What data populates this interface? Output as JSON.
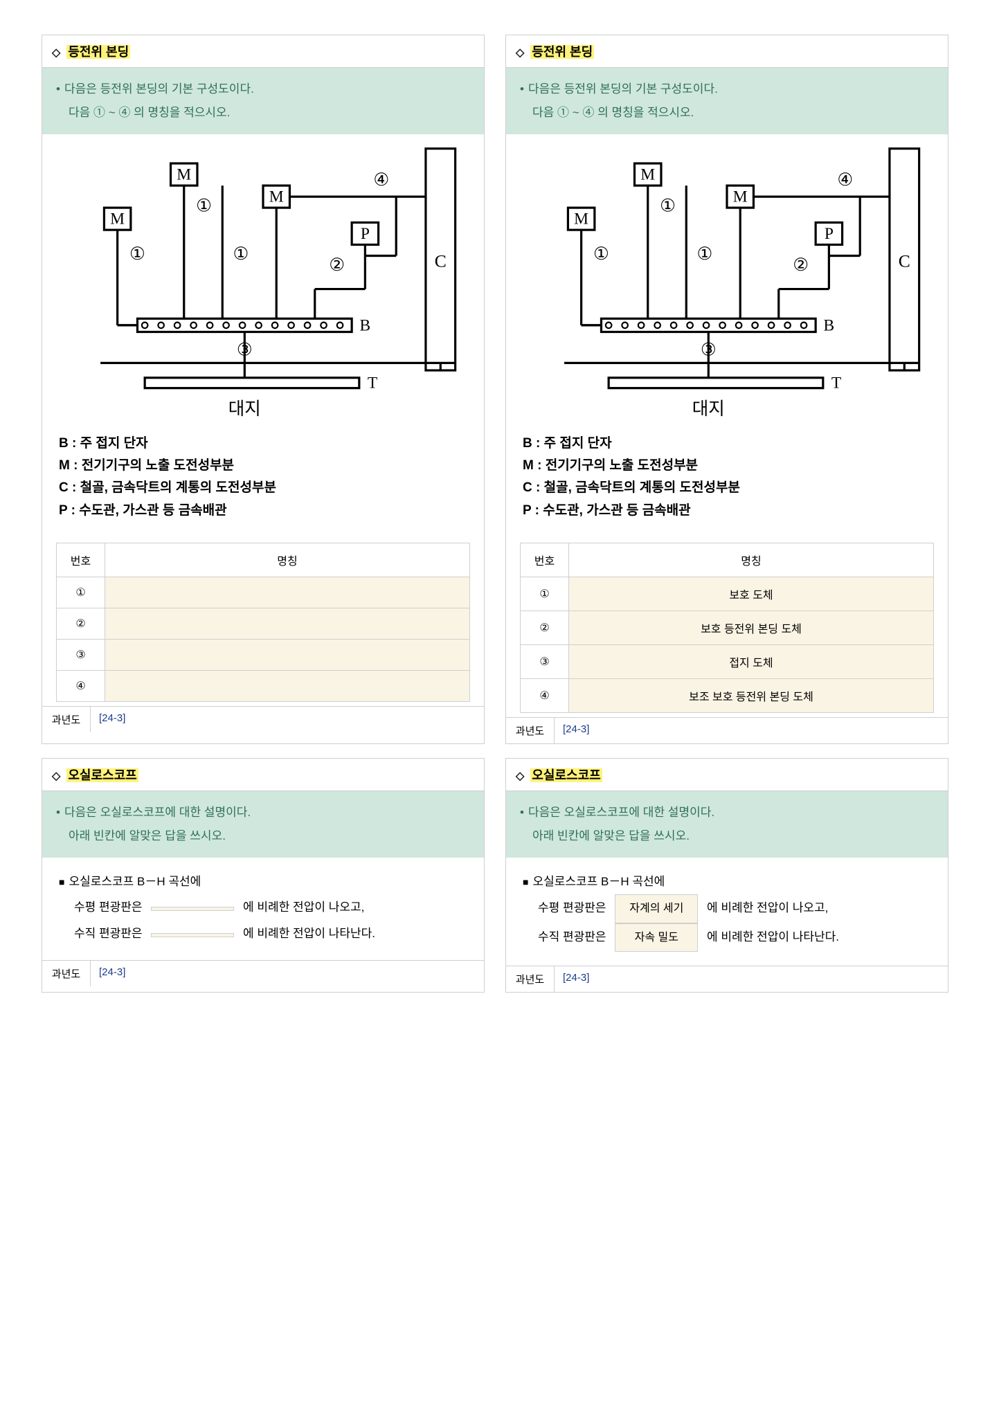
{
  "card1": {
    "title": "등전위 본딩",
    "q_line1": "다음은 등전위 본딩의 기본 구성도이다.",
    "q_line2": "다음 ① ~ ④ 의 명칭을 적으시오.",
    "legend": {
      "B": "B : 주 접지 단자",
      "M": "M : 전기기구의 노출 도전성부분",
      "C": "C : 철골, 금속닥트의 계통의 도전성부분",
      "P": "P : 수도관, 가스관 등 금속배관"
    },
    "table": {
      "h1": "번호",
      "h2": "명칭",
      "rows": [
        {
          "no": "①",
          "val": ""
        },
        {
          "no": "②",
          "val": ""
        },
        {
          "no": "③",
          "val": ""
        },
        {
          "no": "④",
          "val": ""
        }
      ]
    },
    "footer_label": "과년도",
    "footer_val": "[24-3]"
  },
  "card2": {
    "title": "등전위 본딩",
    "q_line1": "다음은 등전위 본딩의 기본 구성도이다.",
    "q_line2": "다음 ① ~ ④ 의 명칭을 적으시오.",
    "legend": {
      "B": "B : 주 접지 단자",
      "M": "M : 전기기구의 노출 도전성부분",
      "C": "C : 철골, 금속닥트의 계통의 도전성부분",
      "P": "P : 수도관, 가스관 등 금속배관"
    },
    "table": {
      "h1": "번호",
      "h2": "명칭",
      "rows": [
        {
          "no": "①",
          "val": "보호 도체"
        },
        {
          "no": "②",
          "val": "보호 등전위 본딩 도체"
        },
        {
          "no": "③",
          "val": "접지 도체"
        },
        {
          "no": "④",
          "val": "보조 보호 등전위 본딩 도체"
        }
      ]
    },
    "footer_label": "과년도",
    "footer_val": "[24-3]"
  },
  "card3": {
    "title": "오실로스코프",
    "q_line1": "다음은 오실로스코프에 대한 설명이다.",
    "q_line2": "아래 빈칸에 알맞은 답을 쓰시오.",
    "sub": "오실로스코프 B－H 곡선에",
    "line1a": "수평 편광판은",
    "blank1": "",
    "line1b": "에 비례한 전압이 나오고,",
    "line2a": "수직 편광판은",
    "blank2": "",
    "line2b": "에 비례한 전압이 나타난다.",
    "footer_label": "과년도",
    "footer_val": "[24-3]"
  },
  "card4": {
    "title": "오실로스코프",
    "q_line1": "다음은 오실로스코프에 대한 설명이다.",
    "q_line2": "아래 빈칸에 알맞은 답을 쓰시오.",
    "sub": "오실로스코프 B－H 곡선에",
    "line1a": "수평 편광판은",
    "blank1": "자계의 세기",
    "line1b": "에 비례한 전압이 나오고,",
    "line2a": "수직 편광판은",
    "blank2": "자속 밀도",
    "line2b": "에 비례한 전압이 나타난다.",
    "footer_label": "과년도",
    "footer_val": "[24-3]"
  },
  "diagram": {
    "labels": {
      "M": "M",
      "P": "P",
      "C": "C",
      "B": "B",
      "T": "T",
      "ground": "대지",
      "c1": "①",
      "c2": "②",
      "c3": "③",
      "c4": "④"
    },
    "colors": {
      "stroke": "#000000",
      "fill_white": "#ffffff"
    }
  }
}
